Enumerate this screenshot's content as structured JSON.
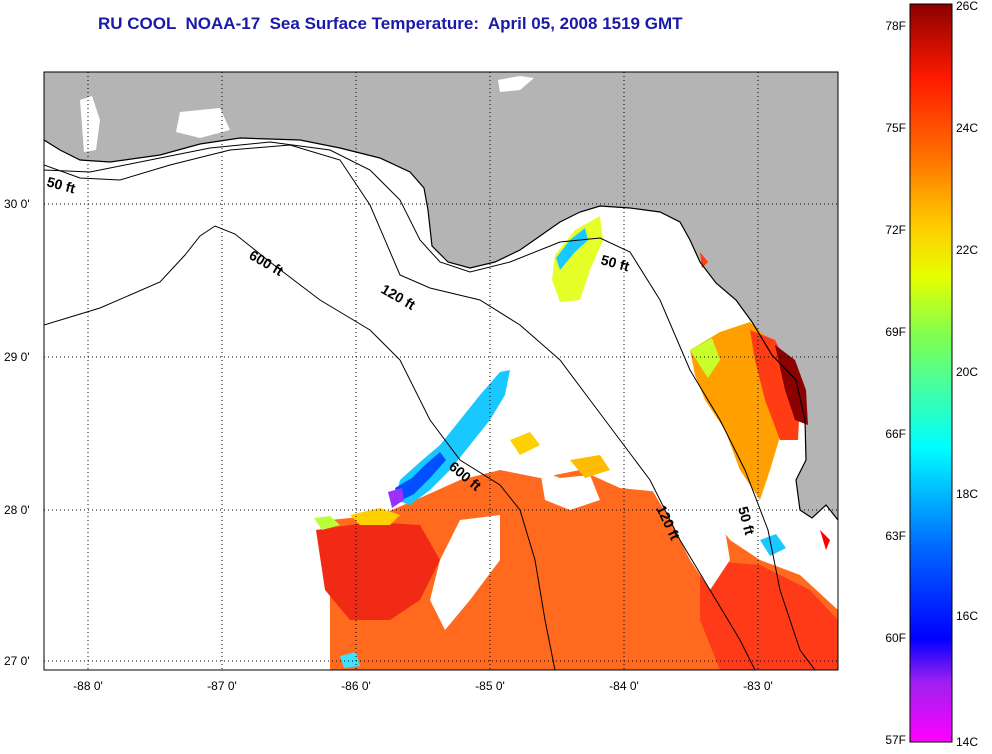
{
  "title": "RU COOL  NOAA-17  Sea Surface Temperature:  April 05, 2008 1519 GMT",
  "map": {
    "x_ticks": [
      "-88 0'",
      "-87 0'",
      "-86 0'",
      "-85 0'",
      "-84 0'",
      "-83 0'"
    ],
    "y_ticks": [
      "30 0'",
      "29 0'",
      "28 0'",
      "27 0'"
    ],
    "contours": [
      "50 ft",
      "120 ft",
      "600 ft",
      "600 ft",
      "50 ft",
      "120 ft",
      "50 ft"
    ]
  },
  "colorbar": {
    "fahrenheit_labels": [
      "78F",
      "75F",
      "72F",
      "69F",
      "66F",
      "63F",
      "60F",
      "57F"
    ],
    "celsius_labels": [
      "26C",
      "24C",
      "22C",
      "20C",
      "18C",
      "16C",
      "14C"
    ],
    "colors": [
      "#8b0000",
      "#ff0000",
      "#ff6a00",
      "#ffd000",
      "#c8ff00",
      "#00ffd0",
      "#0064ff",
      "#0000ff",
      "#a020f0",
      "#ff00ff"
    ]
  },
  "colors": {
    "land": "#b4b4b4",
    "title": "#1a1aa8"
  }
}
